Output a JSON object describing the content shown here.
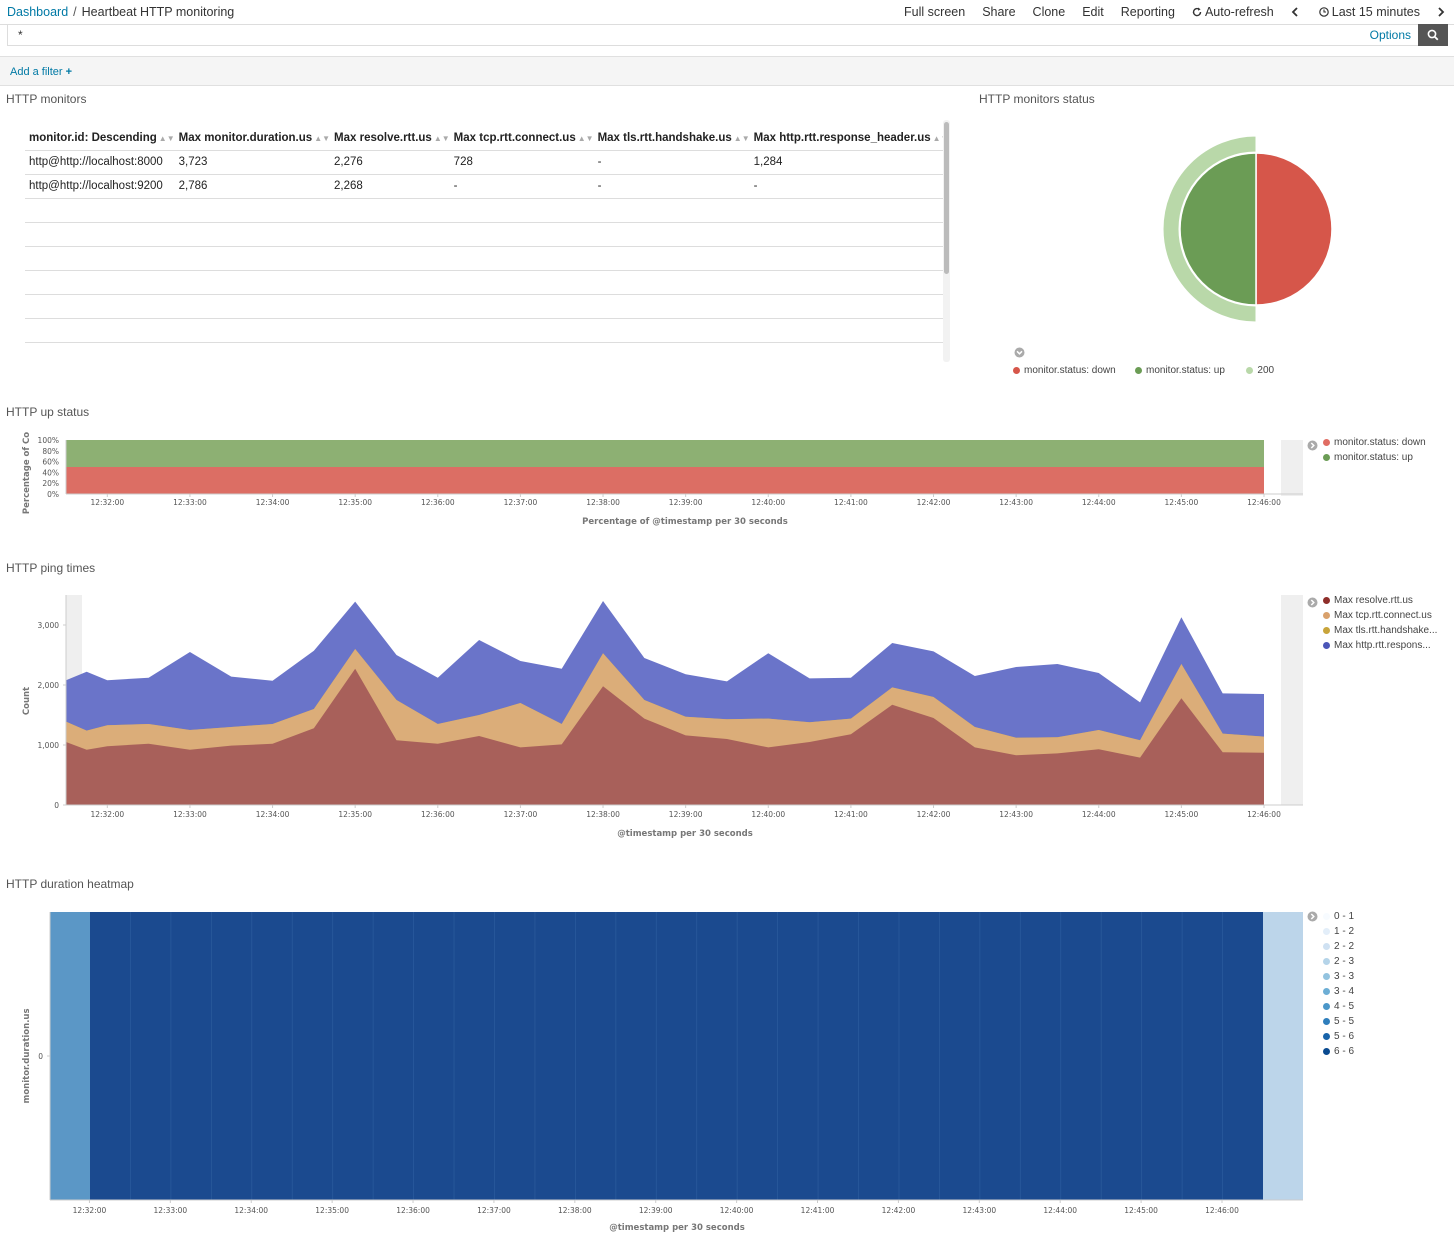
{
  "breadcrumb": {
    "root": "Dashboard",
    "separator": "/",
    "current": "Heartbeat HTTP monitoring"
  },
  "nav": {
    "full_screen": "Full screen",
    "share": "Share",
    "clone": "Clone",
    "edit": "Edit",
    "reporting": "Reporting",
    "auto_refresh": "Auto-refresh",
    "time_range": "Last 15 minutes"
  },
  "query": {
    "value": "*",
    "options_label": "Options"
  },
  "filter": {
    "add_label": "Add a filter"
  },
  "monitors_table": {
    "title": "HTTP monitors",
    "columns": [
      "monitor.id: Descending",
      "Max monitor.duration.us",
      "Max resolve.rtt.us",
      "Max tcp.rtt.connect.us",
      "Max tls.rtt.handshake.us",
      "Max http.rtt.response_header.us"
    ],
    "rows": [
      [
        "http@http://localhost:8000",
        "3,723",
        "2,276",
        "728",
        "-",
        "1,284"
      ],
      [
        "http@http://localhost:9200",
        "2,786",
        "2,268",
        "-",
        "-",
        "-"
      ]
    ]
  },
  "status_pie": {
    "title": "HTTP monitors status",
    "legend": [
      {
        "label": "monitor.status: down",
        "color": "#d6564a"
      },
      {
        "label": "monitor.status: up",
        "color": "#6b9c55"
      },
      {
        "label": "200",
        "color": "#b9d8a9"
      }
    ],
    "chart_data": {
      "type": "pie",
      "inner": [
        {
          "name": "monitor.status: down",
          "value": 50,
          "color": "#d6564a"
        },
        {
          "name": "monitor.status: up",
          "value": 50,
          "color": "#6b9c55"
        }
      ],
      "outer": [
        {
          "name": "200",
          "value": 50,
          "color": "#b9d8a9"
        }
      ]
    }
  },
  "up_status": {
    "title": "HTTP up status",
    "ylabel": "Percentage of Co",
    "xlabel": "Percentage of @timestamp per 30 seconds",
    "yticks": [
      "100%",
      "80%",
      "60%",
      "40%",
      "20%",
      "0%"
    ],
    "xticks": [
      "12:32:00",
      "12:33:00",
      "12:34:00",
      "12:35:00",
      "12:36:00",
      "12:37:00",
      "12:38:00",
      "12:39:00",
      "12:40:00",
      "12:41:00",
      "12:42:00",
      "12:43:00",
      "12:44:00",
      "12:45:00",
      "12:46:00"
    ],
    "legend": [
      {
        "label": "monitor.status: down",
        "color": "#e06d63"
      },
      {
        "label": "monitor.status: up",
        "color": "#6b9c55"
      }
    ],
    "chart_data": {
      "type": "area",
      "stacked_percent": true,
      "series": [
        {
          "name": "monitor.status: down",
          "value_percent": 50,
          "color": "#dc6e64"
        },
        {
          "name": "monitor.status: up",
          "value_percent": 50,
          "color": "#8db073"
        }
      ]
    }
  },
  "ping_times": {
    "title": "HTTP ping times",
    "ylabel": "Count",
    "xlabel": "@timestamp per 30 seconds",
    "yticks": [
      "3,000",
      "2,000",
      "1,000",
      "0"
    ],
    "xticks": [
      "12:32:00",
      "12:33:00",
      "12:34:00",
      "12:35:00",
      "12:36:00",
      "12:37:00",
      "12:38:00",
      "12:39:00",
      "12:40:00",
      "12:41:00",
      "12:42:00",
      "12:43:00",
      "12:44:00",
      "12:45:00",
      "12:46:00"
    ],
    "legend": [
      {
        "label": "Max resolve.rtt.us",
        "color": "#8e2e2a"
      },
      {
        "label": "Max tcp.rtt.connect.us",
        "color": "#d9a16c"
      },
      {
        "label": "Max tls.rtt.handshake...",
        "color": "#c8a43a"
      },
      {
        "label": "Max http.rtt.respons...",
        "color": "#4b56b8"
      }
    ],
    "chart_data": {
      "type": "area",
      "stacked": true,
      "ylim": [
        0,
        3500
      ],
      "x": [
        "12:31:30",
        "12:31:45",
        "12:32:00",
        "12:32:30",
        "12:33:00",
        "12:33:30",
        "12:34:00",
        "12:34:30",
        "12:35:00",
        "12:35:30",
        "12:36:00",
        "12:36:30",
        "12:37:00",
        "12:37:30",
        "12:38:00",
        "12:38:30",
        "12:39:00",
        "12:39:30",
        "12:40:00",
        "12:40:30",
        "12:41:00",
        "12:41:30",
        "12:42:00",
        "12:42:30",
        "12:43:00",
        "12:43:30",
        "12:44:00",
        "12:44:30",
        "12:45:00",
        "12:45:30",
        "12:46:00"
      ],
      "series": [
        {
          "name": "Max resolve.rtt.us",
          "color": "#a8605a",
          "cumulative": [
            1050,
            920,
            980,
            1020,
            920,
            990,
            1020,
            1280,
            2270,
            1080,
            1020,
            1150,
            960,
            1010,
            1980,
            1440,
            1160,
            1100,
            960,
            1050,
            1180,
            1670,
            1450,
            960,
            830,
            860,
            930,
            790,
            1780,
            880,
            870
          ]
        },
        {
          "name": "Max tcp.rtt.connect.us",
          "color": "#dbad79",
          "cumulative": [
            1390,
            1240,
            1330,
            1350,
            1250,
            1300,
            1350,
            1600,
            2600,
            1750,
            1350,
            1500,
            1700,
            1350,
            2530,
            1750,
            1470,
            1430,
            1440,
            1380,
            1440,
            1960,
            1800,
            1300,
            1120,
            1130,
            1250,
            1080,
            2350,
            1190,
            1140
          ]
        },
        {
          "name": "Max tls.rtt.handshake.us",
          "color": "#c8a43a",
          "cumulative": [
            1390,
            1240,
            1330,
            1350,
            1250,
            1300,
            1350,
            1600,
            2600,
            1750,
            1350,
            1500,
            1700,
            1350,
            2530,
            1750,
            1470,
            1430,
            1440,
            1380,
            1440,
            1960,
            1800,
            1300,
            1120,
            1130,
            1250,
            1080,
            2350,
            1190,
            1140
          ]
        },
        {
          "name": "Max http.rtt.response_header.us",
          "color": "#6a74c9",
          "cumulative": [
            2080,
            2220,
            2080,
            2120,
            2550,
            2140,
            2070,
            2570,
            3390,
            2500,
            2120,
            2750,
            2400,
            2270,
            3400,
            2450,
            2180,
            2060,
            2530,
            2110,
            2120,
            2700,
            2560,
            2150,
            2300,
            2350,
            2200,
            1710,
            3130,
            1860,
            1850
          ]
        }
      ]
    }
  },
  "heatmap": {
    "title": "HTTP duration heatmap",
    "ylabel": "monitor.duration.us",
    "ytick": "0",
    "xlabel": "@timestamp per 30 seconds",
    "xticks": [
      "12:32:00",
      "12:33:00",
      "12:34:00",
      "12:35:00",
      "12:36:00",
      "12:37:00",
      "12:38:00",
      "12:39:00",
      "12:40:00",
      "12:41:00",
      "12:42:00",
      "12:43:00",
      "12:44:00",
      "12:45:00",
      "12:46:00"
    ],
    "legend": [
      {
        "label": "0 - 1",
        "color": "#f7fbff"
      },
      {
        "label": "1 - 2",
        "color": "#e3eef9"
      },
      {
        "label": "2 - 2",
        "color": "#cfe1f2"
      },
      {
        "label": "2 - 3",
        "color": "#b5d4e9"
      },
      {
        "label": "3 - 3",
        "color": "#93c3df"
      },
      {
        "label": "3 - 4",
        "color": "#6daed5"
      },
      {
        "label": "4 - 5",
        "color": "#4b97c9"
      },
      {
        "label": "5 - 5",
        "color": "#2f7ebc"
      },
      {
        "label": "5 - 6",
        "color": "#1864aa"
      },
      {
        "label": "6 - 6",
        "color": "#0a4a90"
      }
    ],
    "chart_data": {
      "type": "heatmap",
      "first_bucket_color": "#5b97c6",
      "middle_color": "#1b4a8f",
      "last_bucket_color": "#bcd5ea"
    }
  }
}
